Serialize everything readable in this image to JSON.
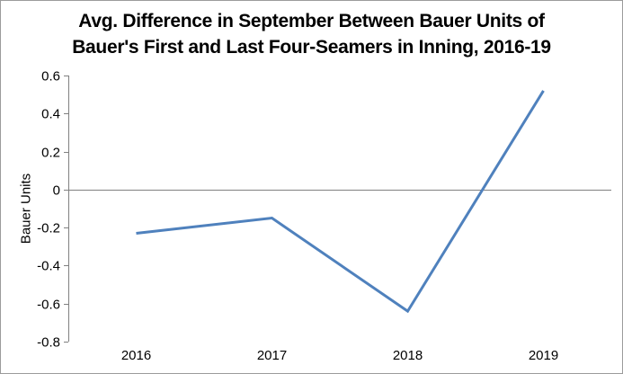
{
  "chart_data": {
    "type": "line",
    "title": "Avg. Difference in September Between Bauer Units of Bauer's First and Last Four-Seamers in Inning, 2016-19",
    "title_lines": [
      "Avg. Difference in September Between Bauer Units of",
      "Bauer's First and Last Four-Seamers in Inning, 2016-19"
    ],
    "xlabel": "",
    "ylabel": "Bauer Units",
    "categories": [
      "2016",
      "2017",
      "2018",
      "2019"
    ],
    "values": [
      -0.23,
      -0.15,
      -0.64,
      0.52
    ],
    "ylim": [
      -0.8,
      0.6
    ],
    "y_tick_labels": [
      "0.6",
      "0.4",
      "0.2",
      "0",
      "-0.2",
      "-0.4",
      "-0.6",
      "-0.8"
    ],
    "grid": false,
    "legend_position": "none",
    "zero_line": true,
    "colors": {
      "line": "#4F81BD",
      "axis": "#808080",
      "text": "#000000",
      "border": "#9B9B9B",
      "background": "#FFFFFF"
    }
  }
}
